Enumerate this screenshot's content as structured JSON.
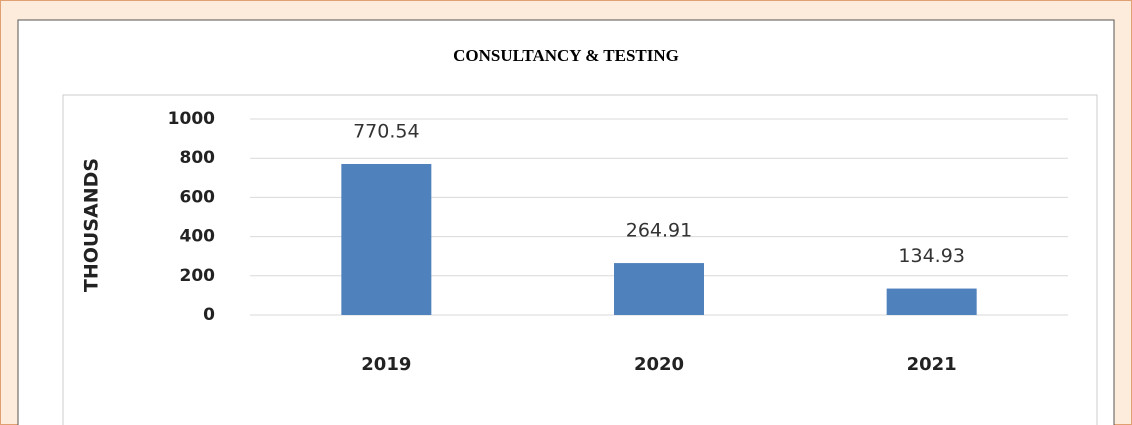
{
  "chart_data": {
    "type": "bar",
    "title": "CONSULTANCY & TESTING",
    "y_label": "THOUSANDS",
    "categories": [
      "2019",
      "2020",
      "2021"
    ],
    "values": [
      770.54,
      264.91,
      134.93
    ],
    "color": "#4f81bd",
    "ylim": [
      0,
      1000
    ],
    "yticks": [
      0,
      200,
      400,
      600,
      800,
      1000
    ],
    "grid": true
  }
}
